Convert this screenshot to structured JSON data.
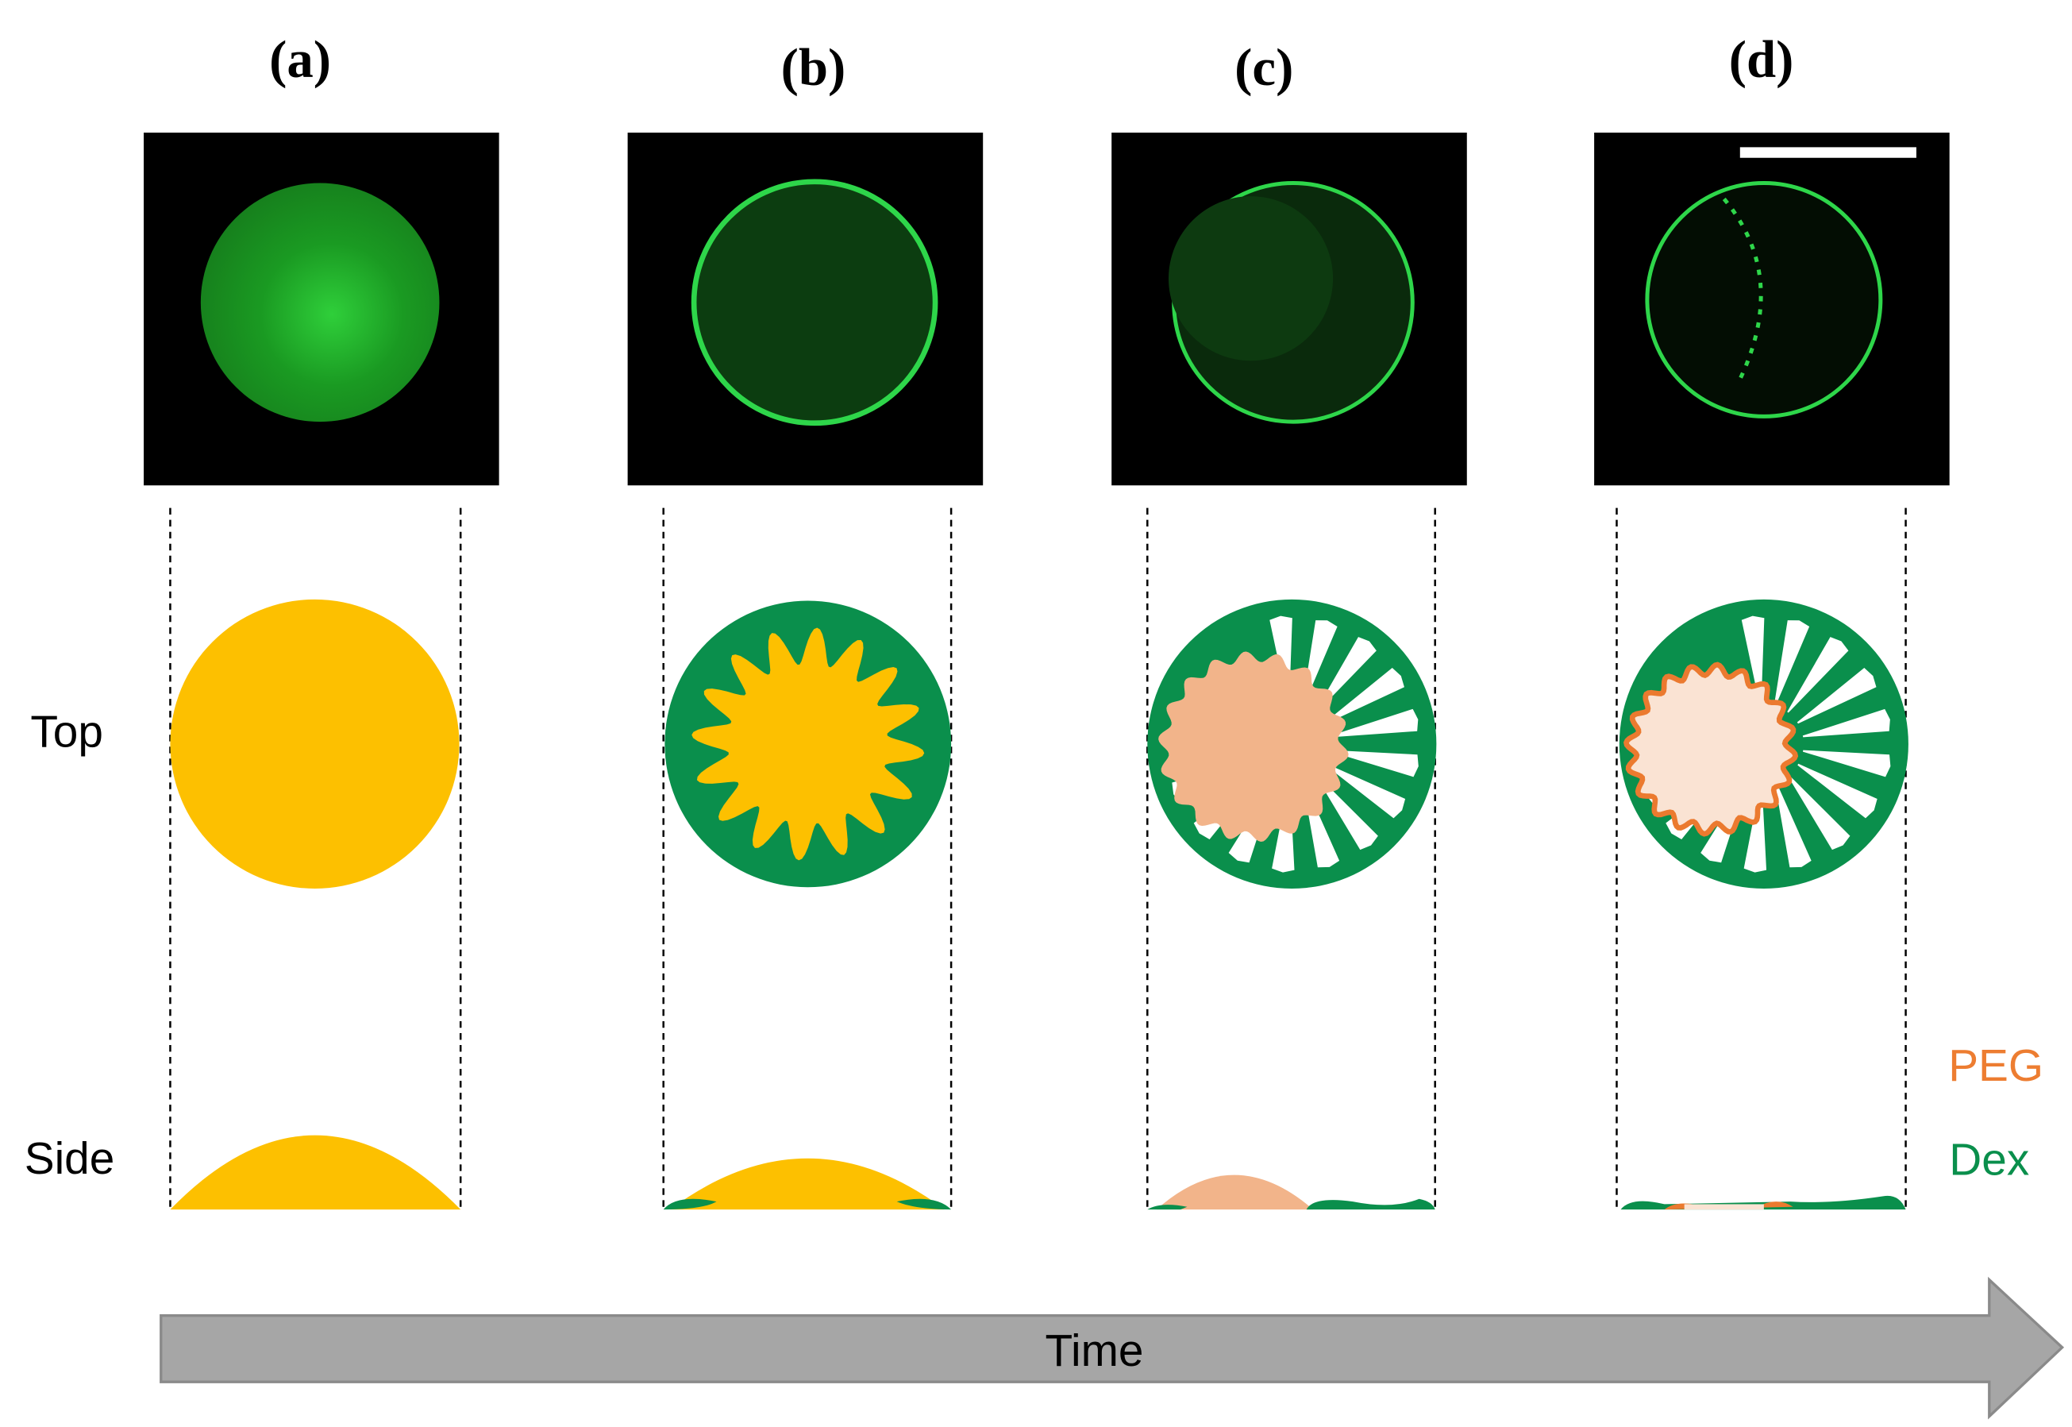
{
  "panels": [
    {
      "label": "(a)"
    },
    {
      "label": "(b)"
    },
    {
      "label": "(c)"
    },
    {
      "label": "(d)"
    }
  ],
  "rows": {
    "top": "Top",
    "side": "Side"
  },
  "legend": {
    "peg": "PEG",
    "dex": "Dex"
  },
  "arrow": {
    "label": "Time"
  }
}
